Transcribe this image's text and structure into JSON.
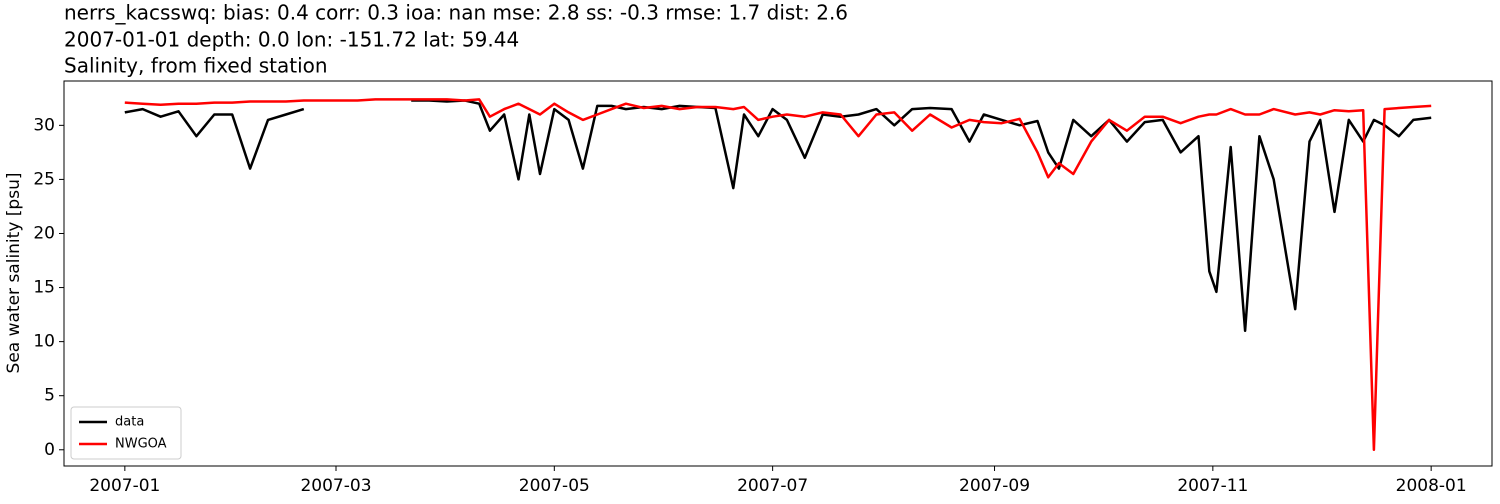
{
  "chart_data": {
    "type": "line",
    "title": [
      "nerrs_kacsswq: bias: 0.4  corr: 0.3  ioa: nan  mse: 2.8  ss: -0.3  rmse: 1.7  dist: 2.6",
      "2007-01-01 depth: 0.0 lon: -151.72 lat: 59.44",
      "Salinity, from fixed station"
    ],
    "ylabel": "Sea water salinity [psu]",
    "x": [
      0,
      5,
      10,
      15,
      20,
      25,
      30,
      35,
      40,
      45,
      50,
      55,
      60,
      65,
      70,
      75,
      80,
      85,
      90,
      95,
      99,
      102,
      106,
      110,
      113,
      116,
      120,
      124,
      128,
      132,
      136,
      140,
      145,
      150,
      155,
      160,
      165,
      170,
      173,
      177,
      181,
      185,
      190,
      195,
      200,
      205,
      210,
      215,
      220,
      225,
      231,
      236,
      240,
      245,
      250,
      255,
      258,
      261,
      265,
      270,
      275,
      280,
      285,
      290,
      295,
      300,
      303,
      305,
      309,
      313,
      317,
      321,
      327,
      331,
      334,
      338,
      342,
      346,
      349,
      352,
      356,
      360,
      365
    ],
    "series": [
      {
        "name": "data",
        "color": "#000000",
        "values": [
          31.2,
          31.5,
          30.8,
          31.3,
          29,
          31,
          31,
          26,
          30.5,
          31,
          31.5,
          null,
          null,
          null,
          null,
          null,
          32.3,
          32.3,
          32.2,
          32.3,
          32,
          29.5,
          31,
          25,
          31,
          25.5,
          31.5,
          30.5,
          26,
          31.8,
          31.8,
          31.5,
          31.7,
          31.5,
          31.8,
          31.7,
          31.6,
          24.2,
          31,
          29,
          31.5,
          30.5,
          27,
          31,
          30.8,
          31,
          31.5,
          30,
          31.5,
          31.6,
          31.5,
          28.5,
          31,
          30.5,
          30,
          30.4,
          27.5,
          26,
          30.5,
          29,
          30.5,
          28.5,
          30.3,
          30.5,
          27.5,
          29,
          16.5,
          14.6,
          28,
          11,
          29,
          25,
          13,
          28.5,
          30.5,
          22,
          30.5,
          28.5,
          30.5,
          30,
          29,
          30.5,
          30.7
        ]
      },
      {
        "name": "NWGOA",
        "color": "#ff0000",
        "values": [
          32.1,
          32,
          31.9,
          32,
          32,
          32.1,
          32.1,
          32.2,
          32.2,
          32.2,
          32.3,
          32.3,
          32.3,
          32.3,
          32.4,
          32.4,
          32.4,
          32.4,
          32.4,
          32.3,
          32.4,
          30.8,
          31.5,
          32,
          31.5,
          31,
          32,
          31.2,
          30.5,
          31,
          31.5,
          32,
          31.6,
          31.8,
          31.5,
          31.7,
          31.7,
          31.5,
          31.7,
          30.5,
          30.8,
          31,
          30.8,
          31.2,
          31,
          29,
          31,
          31.2,
          29.5,
          31,
          29.8,
          30.5,
          30.3,
          30.2,
          30.6,
          27.5,
          25.2,
          26.5,
          25.5,
          28.5,
          30.5,
          29.5,
          30.8,
          30.8,
          30.2,
          30.8,
          31,
          31,
          31.5,
          31,
          31,
          31.5,
          31,
          31.2,
          31,
          31.4,
          31.3,
          31.4,
          0,
          31.5,
          31.6,
          31.7,
          31.8
        ]
      }
    ],
    "xlim": [
      -17,
      382
    ],
    "xticks": [
      {
        "value": 0,
        "label": "2007-01"
      },
      {
        "value": 59,
        "label": "2007-03"
      },
      {
        "value": 120,
        "label": "2007-05"
      },
      {
        "value": 181,
        "label": "2007-07"
      },
      {
        "value": 243,
        "label": "2007-09"
      },
      {
        "value": 304,
        "label": "2007-11"
      },
      {
        "value": 365,
        "label": "2008-01"
      }
    ],
    "ylim": [
      -1.5,
      34.1
    ],
    "yticks": [
      0,
      5,
      10,
      15,
      20,
      25,
      30
    ],
    "legend": "lower left"
  }
}
